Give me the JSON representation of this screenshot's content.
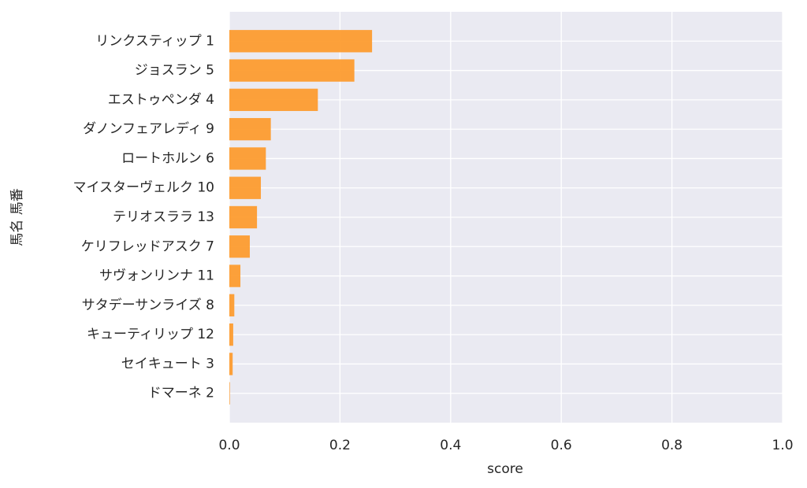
{
  "chart_data": {
    "type": "barh",
    "xlabel": "score",
    "ylabel": "馬名 馬番",
    "categories": [
      "リンクスティップ 1",
      "ジョスラン 5",
      "エストゥペンダ 4",
      "ダノンフェアレディ 9",
      "ロートホルン 6",
      "マイスターヴェルク 10",
      "テリオスララ 13",
      "ケリフレッドアスク 7",
      "サヴォンリンナ 11",
      "サタデーサンライズ 8",
      "キューティリップ 12",
      "セイキュート 3",
      "ドマーネ 2"
    ],
    "values": [
      0.258,
      0.226,
      0.16,
      0.075,
      0.066,
      0.057,
      0.05,
      0.037,
      0.02,
      0.009,
      0.007,
      0.006,
      0.001
    ],
    "color": "#fd9c2f",
    "xlim": [
      0,
      1
    ],
    "xticks": [
      {
        "value": 0,
        "label": "0.0"
      },
      0.2,
      0.4,
      0.6,
      0.8,
      {
        "value": 1,
        "label": "1.0"
      }
    ],
    "grid": true
  }
}
